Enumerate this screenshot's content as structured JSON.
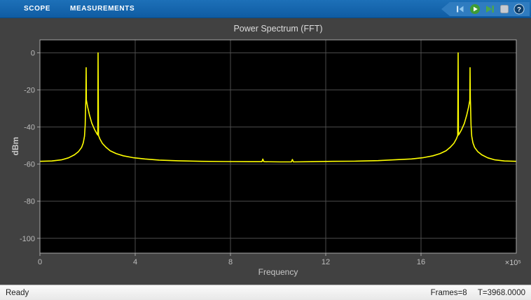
{
  "toolbar": {
    "tabs": [
      {
        "label": "SCOPE"
      },
      {
        "label": "MEASUREMENTS"
      }
    ],
    "icons": [
      {
        "name": "step-backward"
      },
      {
        "name": "run"
      },
      {
        "name": "step-forward"
      },
      {
        "name": "stop"
      },
      {
        "name": "help"
      }
    ]
  },
  "chart_data": {
    "type": "line",
    "title": "Power Spectrum (FFT)",
    "xlabel": "Frequency",
    "ylabel": "dBm",
    "x_scale_label": "×10⁵",
    "xlim": [
      0,
      20
    ],
    "ylim": [
      -108,
      7
    ],
    "xticks": [
      0,
      4,
      8,
      12,
      16
    ],
    "yticks": [
      0,
      -20,
      -40,
      -60,
      -80,
      -100
    ],
    "grid": true,
    "legend": "none",
    "series": [
      {
        "name": "power-spectrum",
        "color": "#ffff00",
        "points": [
          [
            0,
            -58.5
          ],
          [
            0.5,
            -58.3
          ],
          [
            0.9,
            -57.7
          ],
          [
            1.2,
            -56.6
          ],
          [
            1.45,
            -55
          ],
          [
            1.62,
            -53.2
          ],
          [
            1.75,
            -51
          ],
          [
            1.82,
            -48.5
          ],
          [
            1.87,
            -45
          ],
          [
            1.9,
            -39
          ],
          [
            1.92,
            -28
          ],
          [
            1.93,
            -25
          ],
          [
            1.94,
            -8
          ],
          [
            1.95,
            -25.5
          ],
          [
            2.0,
            -29
          ],
          [
            2.08,
            -33.5
          ],
          [
            2.18,
            -38
          ],
          [
            2.3,
            -41.5
          ],
          [
            2.4,
            -43.8
          ],
          [
            2.43,
            -44.3
          ],
          [
            2.44,
            0
          ],
          [
            2.46,
            -44.5
          ],
          [
            2.52,
            -46.5
          ],
          [
            2.62,
            -48.8
          ],
          [
            2.78,
            -51
          ],
          [
            2.95,
            -52.8
          ],
          [
            3.2,
            -54.3
          ],
          [
            3.5,
            -55.5
          ],
          [
            3.9,
            -56.5
          ],
          [
            4.4,
            -57.2
          ],
          [
            5.0,
            -57.8
          ],
          [
            5.8,
            -58.2
          ],
          [
            6.8,
            -58.5
          ],
          [
            7.8,
            -58.6
          ],
          [
            8.8,
            -58.7
          ],
          [
            9.32,
            -58.7
          ],
          [
            9.36,
            -57.3
          ],
          [
            9.4,
            -58.7
          ],
          [
            10.1,
            -58.8
          ],
          [
            10.56,
            -58.8
          ],
          [
            10.6,
            -57.5
          ],
          [
            10.64,
            -58.8
          ],
          [
            11.4,
            -58.7
          ],
          [
            12.3,
            -58.5
          ],
          [
            13.2,
            -58.4
          ],
          [
            14.2,
            -58.1
          ],
          [
            15.0,
            -57.6
          ],
          [
            15.6,
            -57.2
          ],
          [
            16.1,
            -56.5
          ],
          [
            16.5,
            -55.5
          ],
          [
            16.8,
            -54.3
          ],
          [
            17.05,
            -52.8
          ],
          [
            17.22,
            -51
          ],
          [
            17.38,
            -48.8
          ],
          [
            17.48,
            -46.5
          ],
          [
            17.54,
            -44.5
          ],
          [
            17.56,
            0
          ],
          [
            17.57,
            -44.3
          ],
          [
            17.6,
            -43.8
          ],
          [
            17.7,
            -41.5
          ],
          [
            17.82,
            -38
          ],
          [
            17.92,
            -33.5
          ],
          [
            18.0,
            -29
          ],
          [
            18.05,
            -25.5
          ],
          [
            18.06,
            -8
          ],
          [
            18.07,
            -25
          ],
          [
            18.08,
            -28
          ],
          [
            18.1,
            -39
          ],
          [
            18.13,
            -45
          ],
          [
            18.18,
            -48.5
          ],
          [
            18.25,
            -51
          ],
          [
            18.38,
            -53.2
          ],
          [
            18.55,
            -55
          ],
          [
            18.8,
            -56.6
          ],
          [
            19.1,
            -57.7
          ],
          [
            19.5,
            -58.3
          ],
          [
            20,
            -58.5
          ]
        ]
      }
    ]
  },
  "status_bar": {
    "left": "Ready",
    "frames": "Frames=8",
    "time": "T=3968.0000"
  },
  "colors": {
    "toolbar_blue": "#1263ac",
    "toolbar_tag_blue": "#2f7cc0",
    "panel_bg": "#414141",
    "plot_bg": "#000000",
    "grid": "#4d4d4d",
    "axis": "#a8a8a8",
    "tick_text": "#bdbdbd",
    "trace_yellow": "#ffff00",
    "status_bg": "#efefef"
  }
}
